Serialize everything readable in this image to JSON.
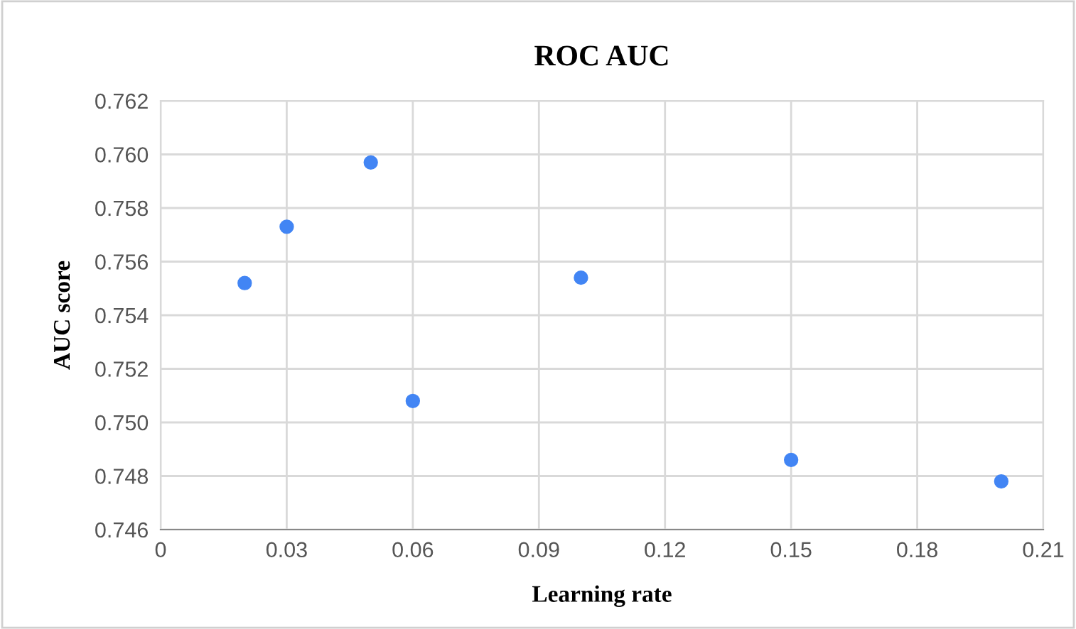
{
  "chart_data": {
    "type": "scatter",
    "title": "ROC AUC",
    "xlabel": "Learning rate",
    "ylabel": "AUC score",
    "x": [
      0.02,
      0.03,
      0.05,
      0.06,
      0.1,
      0.15,
      0.2
    ],
    "series": [
      {
        "color": "#4285f4",
        "values": [
          0.7552,
          0.7573,
          0.7597,
          0.7508,
          0.7554,
          0.7486,
          0.7478
        ]
      }
    ],
    "xlim": [
      0,
      0.21
    ],
    "xticks": [
      {
        "value": 0,
        "label": "0"
      },
      0.03,
      0.06,
      0.09,
      0.12,
      0.15,
      0.18,
      0.21
    ],
    "ylim": [
      0.746,
      0.762
    ],
    "yticks": [
      {
        "value": 0.746,
        "label": "0.746"
      },
      {
        "value": 0.748,
        "label": "0.748"
      },
      {
        "value": 0.75,
        "label": "0.750"
      },
      {
        "value": 0.752,
        "label": "0.752"
      },
      {
        "value": 0.754,
        "label": "0.754"
      },
      {
        "value": 0.756,
        "label": "0.756"
      },
      {
        "value": 0.758,
        "label": "0.758"
      },
      {
        "value": 0.76,
        "label": "0.760"
      },
      {
        "value": 0.762,
        "label": "0.762"
      }
    ],
    "grid": true,
    "marker": "circle",
    "legend": false
  }
}
